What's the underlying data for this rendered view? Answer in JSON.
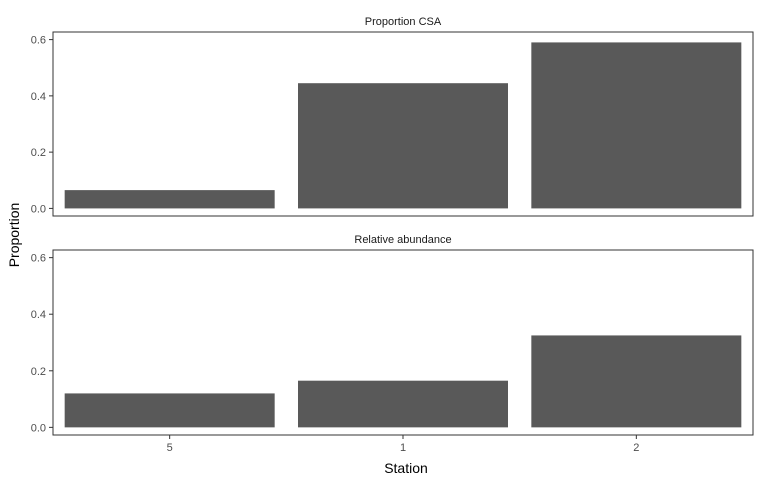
{
  "chart_data": {
    "type": "bar",
    "facets": [
      {
        "title": "Proportion CSA",
        "categories": [
          "5",
          "1",
          "2"
        ],
        "values": [
          0.065,
          0.445,
          0.59
        ]
      },
      {
        "title": "Relative abundance",
        "categories": [
          "5",
          "1",
          "2"
        ],
        "values": [
          0.12,
          0.165,
          0.325
        ]
      }
    ],
    "xlabel": "Station",
    "ylabel": "Proportion",
    "ylim": [
      0,
      0.6
    ],
    "y_ticks": [
      0.0,
      0.2,
      0.4,
      0.6
    ],
    "y_tick_labels": [
      "0.0",
      "0.2",
      "0.4",
      "0.6"
    ],
    "x_tick_labels": [
      "5",
      "1",
      "2"
    ],
    "bar_color": "#595959",
    "grid": false,
    "legend": "none"
  }
}
